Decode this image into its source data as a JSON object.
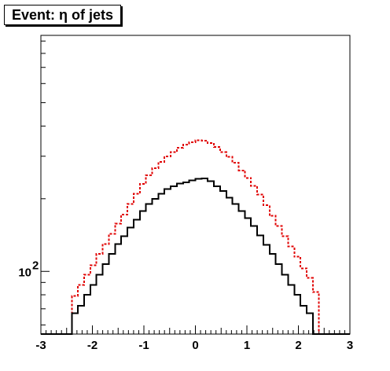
{
  "chart_data": {
    "type": "histogram",
    "title": "Event: η of jets",
    "xlabel": "",
    "ylabel": "",
    "xlim": [
      -3,
      3
    ],
    "ylim": [
      55,
      950
    ],
    "yscale": "log",
    "xticks": [
      -3,
      -2,
      -1,
      0,
      1,
      2,
      3
    ],
    "xtick_labels": [
      "-3",
      "-2",
      "-1",
      "0",
      "1",
      "2",
      "3"
    ],
    "yticks_labeled": [
      100
    ],
    "bin_edges": [
      -3.0,
      -2.88,
      -2.76,
      -2.64,
      -2.52,
      -2.4,
      -2.28,
      -2.16,
      -2.04,
      -1.92,
      -1.8,
      -1.68,
      -1.56,
      -1.44,
      -1.32,
      -1.2,
      -1.08,
      -0.96,
      -0.84,
      -0.72,
      -0.6,
      -0.48,
      -0.36,
      -0.24,
      -0.12,
      0.0,
      0.12,
      0.24,
      0.36,
      0.48,
      0.6,
      0.72,
      0.84,
      0.96,
      1.08,
      1.2,
      1.32,
      1.44,
      1.56,
      1.68,
      1.8,
      1.92,
      2.04,
      2.16,
      2.28,
      2.4,
      2.52,
      2.64,
      2.76,
      2.88,
      3.0
    ],
    "grid": false,
    "series": [
      {
        "style": "solid",
        "color": "#000000",
        "values": [
          55,
          55,
          55,
          55,
          55,
          67,
          72,
          80,
          88,
          97,
          107,
          118,
          130,
          140,
          152,
          164,
          178,
          190,
          200,
          210,
          219,
          225,
          231,
          234,
          238,
          242,
          243,
          236,
          225,
          215,
          202,
          190,
          178,
          166,
          154,
          141,
          129,
          118,
          107,
          97,
          88,
          80,
          72,
          67,
          55,
          55,
          55,
          55,
          55,
          55
        ]
      },
      {
        "style": "dashed",
        "color": "#e00000",
        "values": [
          55,
          55,
          55,
          55,
          55,
          79,
          88,
          97,
          106,
          118,
          130,
          143,
          158,
          172,
          190,
          210,
          230,
          250,
          268,
          284,
          299,
          312,
          325,
          335,
          343,
          349,
          348,
          340,
          327,
          312,
          298,
          282,
          262,
          244,
          226,
          208,
          188,
          170,
          154,
          140,
          127,
          115,
          103,
          94,
          82,
          55,
          55,
          55,
          55,
          55
        ]
      }
    ]
  }
}
